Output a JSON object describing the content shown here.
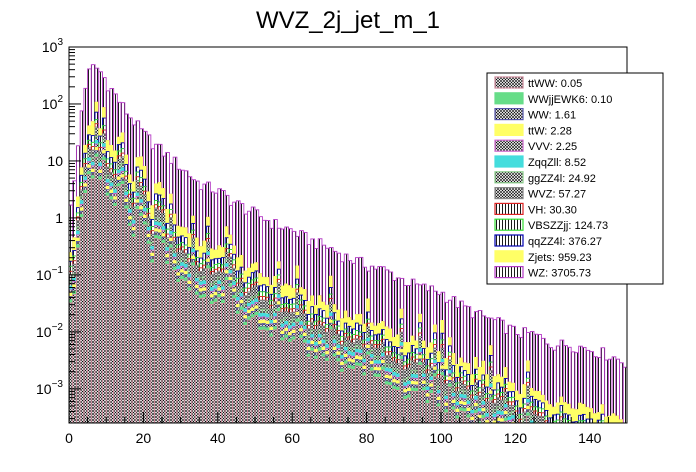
{
  "chart_data": {
    "type": "bar",
    "title": "WVZ_2j_jet_m_1",
    "xlabel": "",
    "ylabel": "",
    "xlim": [
      0,
      150
    ],
    "ylim_log10": [
      -3.6,
      3.0
    ],
    "y_scale": "log",
    "grid": false,
    "legend_position": "top-right",
    "x_ticks": [
      {
        "value": 0,
        "label": "0"
      },
      {
        "value": 20,
        "label": "20"
      },
      {
        "value": 40,
        "label": "40"
      },
      {
        "value": 60,
        "label": "60"
      },
      {
        "value": 80,
        "label": "80"
      },
      {
        "value": 100,
        "label": "100"
      },
      {
        "value": 120,
        "label": "120"
      },
      {
        "value": 140,
        "label": "140"
      }
    ],
    "y_ticks": [
      {
        "value": 1000,
        "base": "10",
        "exp": "3"
      },
      {
        "value": 100,
        "base": "10",
        "exp": "2"
      },
      {
        "value": 10,
        "base": "10",
        "exp": ""
      },
      {
        "value": 1,
        "base": "1",
        "exp": ""
      },
      {
        "value": 0.1,
        "base": "10",
        "exp": "−1"
      },
      {
        "value": 0.01,
        "base": "10",
        "exp": "−2"
      },
      {
        "value": 0.001,
        "base": "10",
        "exp": "−3"
      }
    ],
    "bin_width": 1,
    "stack_top_approx": {
      "bins_x": [
        1,
        2,
        3,
        4,
        5,
        6,
        7,
        8,
        9,
        10,
        12,
        14,
        16,
        18,
        20,
        25,
        30,
        35,
        40,
        45,
        50,
        55,
        60,
        65,
        70,
        75,
        80,
        85,
        90,
        95,
        100,
        105,
        110,
        115,
        120,
        125,
        130,
        135,
        140,
        145,
        149
      ],
      "values": [
        2,
        8,
        40,
        150,
        300,
        420,
        450,
        400,
        330,
        250,
        160,
        100,
        65,
        45,
        30,
        15,
        8,
        4,
        3,
        1.8,
        1.2,
        0.8,
        0.6,
        0.4,
        0.3,
        0.2,
        0.15,
        0.12,
        0.08,
        0.06,
        0.05,
        0.03,
        0.02,
        0.015,
        0.01,
        0.009,
        0.006,
        0.006,
        0.005,
        0.004,
        0.003
      ]
    },
    "series": [
      {
        "name": "WZ",
        "legend": "WZ: 3705.73",
        "total": 3705.73,
        "color": "#b53bc6",
        "hatch": "vertical",
        "component_frac": 0.6
      },
      {
        "name": "Zjets",
        "legend": "Zjets: 959.23",
        "total": 959.23,
        "color": "#ffff66",
        "hatch": "solid",
        "component_frac": 0.15
      },
      {
        "name": "qqZZ4l",
        "legend": "qqZZ4l: 376.27",
        "total": 376.27,
        "color": "#0000b0",
        "hatch": "vertical",
        "component_frac": 0.07
      },
      {
        "name": "VBSZZjj",
        "legend": "VBSZZjj: 124.73",
        "total": 124.73,
        "color": "#33dd33",
        "hatch": "vertical",
        "component_frac": 0.03
      },
      {
        "name": "VH",
        "legend": "VH: 30.30",
        "total": 30.3,
        "color": "#dd2222",
        "hatch": "vertical",
        "component_frac": 0.01
      },
      {
        "name": "WVZ",
        "legend": "WVZ: 57.27",
        "total": 57.27,
        "color": "#888888",
        "hatch": "cross",
        "component_frac": 0.1
      },
      {
        "name": "ggZZ4l",
        "legend": "ggZZ4l: 24.92",
        "total": 24.92,
        "color": "#88cc88",
        "hatch": "cross",
        "component_frac": 0.02
      },
      {
        "name": "ZqqZll",
        "legend": "ZqqZll: 8.52",
        "total": 8.52,
        "color": "#44dddd",
        "hatch": "solid",
        "component_frac": 0.008
      },
      {
        "name": "VVV",
        "legend": "VVV: 2.25",
        "total": 2.25,
        "color": "#cc66cc",
        "hatch": "cross",
        "component_frac": 0.005
      },
      {
        "name": "ttW",
        "legend": "ttW: 2.28",
        "total": 2.28,
        "color": "#ffff66",
        "hatch": "solid",
        "component_frac": 0.004
      },
      {
        "name": "WW",
        "legend": "WW: 1.61",
        "total": 1.61,
        "color": "#5555aa",
        "hatch": "cross",
        "component_frac": 0.003
      },
      {
        "name": "WWjjEWK6",
        "legend": "WWjjEWK6: 0.10",
        "total": 0.1,
        "color": "#66dd88",
        "hatch": "solid",
        "component_frac": 0.001
      },
      {
        "name": "ttWW",
        "legend": "ttWW: 0.05",
        "total": 0.05,
        "color": "#cc8899",
        "hatch": "cross",
        "component_frac": 0.001
      }
    ],
    "legend_order": [
      "ttWW",
      "WWjjEWK6",
      "WW",
      "ttW",
      "VVV",
      "ZqqZll",
      "ggZZ4l",
      "WVZ",
      "VH",
      "VBSZZjj",
      "qqZZ4l",
      "Zjets",
      "WZ"
    ]
  }
}
